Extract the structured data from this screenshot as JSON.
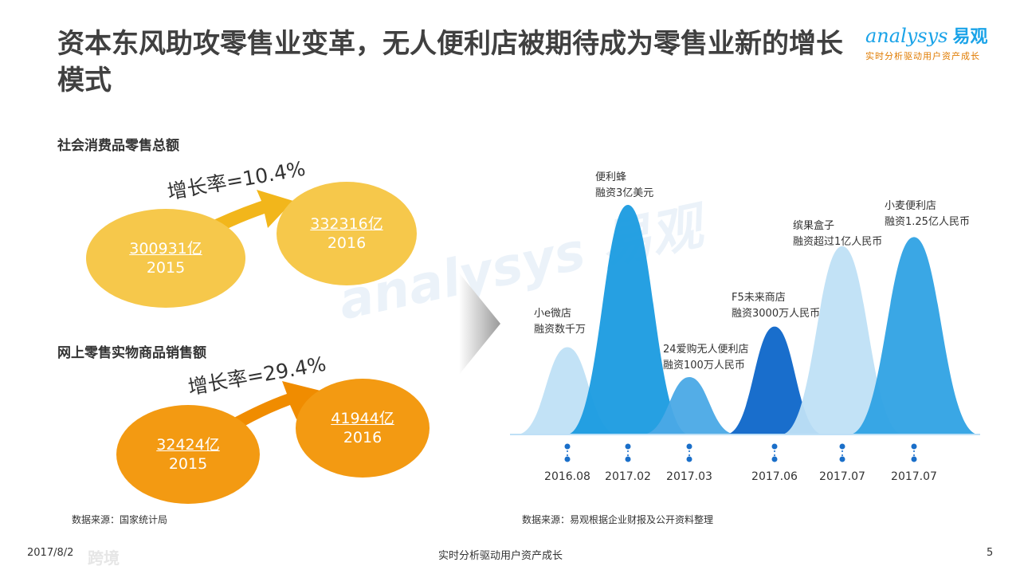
{
  "title": "资本东风助攻零售业变革，无人便利店被期待成为零售业新的增长模式",
  "logo": {
    "word": "analysys",
    "cn": "易观",
    "tagline": "实时分析驱动用户资产成长"
  },
  "watermark": "analysys 易观",
  "left": {
    "retail": {
      "label": "社会消费品零售总额",
      "growth": "增长率=10.4%",
      "bubbles": [
        {
          "value": "300931亿",
          "year": "2015"
        },
        {
          "value": "332316亿",
          "year": "2016"
        }
      ]
    },
    "online": {
      "label": "网上零售实物商品销售额",
      "growth": "增长率=29.4%",
      "bubbles": [
        {
          "value": "32424亿",
          "year": "2015"
        },
        {
          "value": "41944亿",
          "year": "2016"
        }
      ]
    },
    "source": "数据来源：国家统计局"
  },
  "chart_data": {
    "type": "area",
    "note": "Peaks represent funding events of unmanned convenience stores; heights are relative",
    "series": [
      {
        "name": "小e微店",
        "date": "2016.08",
        "label": "小e微店\n融资数千万",
        "relative_height": 0.38,
        "color": "#bfe0f6"
      },
      {
        "name": "便利蜂",
        "date": "2017.02",
        "label": "便利蜂\n融资3亿美元",
        "relative_height": 1.0,
        "color": "#1a9be0"
      },
      {
        "name": "24爱购无人便利店",
        "date": "2017.03",
        "label": "24爱购无人便利店\n融资100万人民币",
        "relative_height": 0.25,
        "color": "#4aa9e6"
      },
      {
        "name": "F5未来商店",
        "date": "2017.06",
        "label": "F5未来商店\n融资3000万人民币",
        "relative_height": 0.47,
        "color": "#0d66c9"
      },
      {
        "name": "缤果盒子",
        "date": "2017.07",
        "label": "缤果盒子\n融资超过1亿人民币",
        "relative_height": 0.82,
        "color": "#bfe0f6"
      },
      {
        "name": "小麦便利店",
        "date": "2017.07",
        "label": "小麦便利店\n融资1.25亿人民币",
        "relative_height": 0.86,
        "color": "#2fa2e4"
      }
    ]
  },
  "right_source": "数据来源：易观根据企业财报及公开资料整理",
  "footer": {
    "date": "2017/8/2",
    "center": "实时分析驱动用户资产成长",
    "page": "5",
    "corner_mark": "跨境"
  }
}
